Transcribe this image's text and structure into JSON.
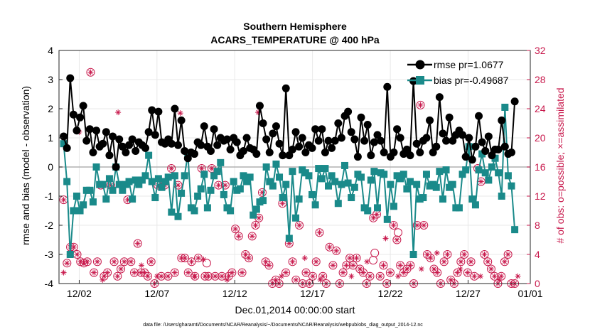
{
  "chart_data": {
    "type": "line",
    "title": "Southern Hemisphere",
    "subtitle": "ACARS_TEMPERATURE @ 400 hPa",
    "xlabel": "Dec.01,2014 00:00:00 start",
    "ylabel": "rmse and bias (model - observation)",
    "y2label": "# of obs: o=possible; ×=assimilated",
    "ylim": [
      -4,
      4
    ],
    "y2lim": [
      0,
      32
    ],
    "xlim": [
      0.7,
      31.0
    ],
    "xticks": [
      2,
      7,
      12,
      17,
      22,
      27,
      31
    ],
    "xticklabels": [
      "12/02",
      "12/07",
      "12/12",
      "12/17",
      "12/22",
      "12/27",
      "01/01"
    ],
    "yticks": [
      -4,
      -3,
      -2,
      -1,
      0,
      1,
      2,
      3,
      4
    ],
    "y2ticks": [
      0,
      4,
      8,
      12,
      16,
      20,
      24,
      28,
      32
    ],
    "legend_position": "top-right",
    "footnote": "data file: /Users/gharamti/Documents/NCAR/Reanalysis/~/Documents/NCAR/Reanalysis/webpub/obs_diag_output_2014-12.nc",
    "colors": {
      "rmse": "#000000",
      "bias": "#1a8a8a",
      "obs": "#c8194c",
      "zero": "#b0b0b0",
      "grid": "#e8e8e8"
    },
    "series": [
      {
        "name": "rmse pr=1.0677",
        "values": [
          1.05,
          0.65,
          3.05,
          1.8,
          1.25,
          1.7,
          2.1,
          0.9,
          1.3,
          0.5,
          1.25,
          0.7,
          0.8,
          1.2,
          0.4,
          1.05,
          0.0,
          0.95,
          0.7,
          0.5,
          0.75,
          0.95,
          0.55,
          0.85,
          0.75,
          0.65,
          1.2,
          1.95,
          1.1,
          1.9,
          0.85,
          0.8,
          0.95,
          0.8,
          2.0,
          0.75,
          1.6,
          0.55,
          0.3,
          0.5,
          0.45,
          0.85,
          0.75,
          1.4,
          0.7,
          0.55,
          1.3,
          0.75,
          1.0,
          0.9,
          0.95,
          0.6,
          1.0,
          0.85,
          0.4,
          0.55,
          1.0,
          0.65,
          0.6,
          0.45,
          2.1,
          1.5,
          0.95,
          0.5,
          1.15,
          1.4,
          0.8,
          0.4,
          2.7,
          0.4,
          0.6,
          1.2,
          0.7,
          1.0,
          0.5,
          0.75,
          0.65,
          1.3,
          0.9,
          1.3,
          0.5,
          0.9,
          0.65,
          0.9,
          1.5,
          1.0,
          1.75,
          1.9,
          1.2,
          0.95,
          0.35,
          1.7,
          0.9,
          1.45,
          0.4,
          0.85,
          1.1,
          0.9,
          0.5,
          2.75,
          0.35,
          0.5,
          1.3,
          1.0,
          0.45,
          0.6,
          0.4,
          2.95,
          0.8,
          0.5,
          0.9,
          1.0,
          1.6,
          0.5,
          0.7,
          2.4,
          1.15,
          0.9,
          1.7,
          0.9,
          1.1,
          1.25,
          1.1,
          0.35,
          1.0,
          0.25,
          0.7,
          1.75,
          0.85,
          0.55,
          1.05,
          0.4,
          0.6,
          0.6,
          1.6,
          0.7,
          0.45,
          0.5,
          2.25
        ]
      },
      {
        "name": "bias pr=-0.49687",
        "values": [
          0.8,
          -0.5,
          -3.0,
          -1.5,
          -1.0,
          -1.5,
          -1.3,
          -0.8,
          -0.8,
          -1.2,
          0.0,
          -0.6,
          -0.6,
          -1.1,
          -0.4,
          -0.8,
          0.0,
          -0.6,
          -0.8,
          -0.6,
          -0.5,
          -1.1,
          -0.45,
          -0.6,
          -0.45,
          -0.3,
          0.4,
          -0.5,
          -1.05,
          -0.4,
          -0.7,
          -0.5,
          -0.35,
          -1.55,
          -0.3,
          -1.7,
          -0.9,
          -0.3,
          0.45,
          -1.4,
          -1.5,
          -1.0,
          -0.75,
          -0.25,
          -1.4,
          -0.8,
          -0.3,
          -0.15,
          0.15,
          -0.95,
          -1.4,
          -1.5,
          -0.5,
          -0.8,
          -0.75,
          -0.3,
          -0.5,
          -0.35,
          -1.65,
          -1.45,
          -1.2,
          -1.15,
          0.0,
          -0.5,
          -0.65,
          0.1,
          -0.35,
          -1.05,
          -0.6,
          -2.45,
          -0.15,
          -1.75,
          -1.1,
          -0.1,
          -0.2,
          -0.3,
          -0.95,
          -1.3,
          -0.05,
          -0.4,
          -0.05,
          -0.65,
          -0.3,
          -0.5,
          -1.25,
          -0.6,
          0.05,
          -0.55,
          -1.05,
          -0.7,
          -0.25,
          -0.35,
          -1.4,
          -1.5,
          -0.45,
          -0.15,
          -1.4,
          -0.2,
          -0.25,
          -1.8,
          -0.6,
          -1.35,
          -0.3,
          -0.4,
          -0.25,
          -0.75,
          -0.5,
          -3.0,
          -0.6,
          -1.1,
          -1.05,
          -0.25,
          -0.65,
          -0.6,
          -0.7,
          -0.15,
          -1.1,
          -0.1,
          -0.7,
          -0.6,
          -1.4,
          -1.4,
          -0.25,
          -0.1,
          0.7,
          -1.1,
          -1.3,
          -0.1,
          0.45,
          -0.2,
          -0.45,
          0.0,
          0.3,
          -0.2,
          -1.0,
          2.05,
          -0.3,
          -0.65,
          -2.15
        ]
      }
    ],
    "obs_possible": [
      11.5,
      2.8,
      5,
      5,
      4,
      3,
      2.8,
      3,
      29,
      1.5,
      3,
      13.5,
      1,
      1.5,
      13.5,
      3,
      1,
      2,
      3,
      11.5,
      3,
      1.5,
      5.5,
      1.5,
      1.5,
      1,
      3,
      0,
      13.5,
      1,
      13.5,
      1,
      15.8,
      1.5,
      13.5,
      3.5,
      3.5,
      1.5,
      3,
      1,
      3.5,
      15.8,
      1,
      1,
      15.8,
      1,
      13.5,
      1,
      13.5,
      1,
      1.5,
      7.5,
      6.5,
      1.5,
      4,
      3.5,
      6.5,
      8,
      9,
      12.5,
      3,
      2.5,
      0,
      0.5,
      0,
      11,
      1.5,
      5.5,
      3,
      0.5,
      8,
      0,
      1.5,
      0,
      1,
      3,
      7,
      1,
      0,
      5,
      2.5,
      4.5,
      0,
      1.5,
      2.5,
      3.5,
      2.5,
      3.5,
      2,
      1.5,
      0,
      1,
      9,
      9.5,
      1,
      2.5,
      0,
      1.5,
      8,
      6,
      2.5,
      1.5,
      2,
      2.5,
      0,
      8,
      24.5,
      8,
      4,
      3.5,
      2,
      1.5,
      0,
      3,
      4,
      0.5,
      0,
      1.5,
      3,
      4,
      1.5,
      3,
      1,
      15.8,
      14,
      4,
      3,
      2,
      1,
      0,
      1,
      3,
      4,
      0,
      0
    ],
    "obs_possible_special": [
      [
        21.0,
        4.2
      ],
      [
        22.5,
        7.0
      ],
      [
        20.9,
        3.2
      ],
      [
        10.2,
        2.8
      ]
    ],
    "obs_assimilated": [
      [
        1.0,
        1.5
      ],
      [
        2.0,
        20.8
      ],
      [
        3.5,
        0.5
      ],
      [
        4.5,
        23.5
      ],
      [
        6.0,
        2.5
      ],
      [
        7.0,
        1.0
      ],
      [
        8.5,
        23.4
      ],
      [
        9.4,
        1.0
      ],
      [
        10.0,
        3.3
      ],
      [
        11.5,
        0.5
      ],
      [
        13.5,
        23.5
      ],
      [
        15.0,
        1.0
      ],
      [
        16.5,
        3.5
      ],
      [
        17.5,
        0.5
      ],
      [
        19.5,
        1.0
      ],
      [
        20.5,
        3.0
      ],
      [
        21.7,
        6.2
      ],
      [
        22.5,
        1.0
      ],
      [
        24.0,
        2.0
      ],
      [
        25.0,
        4.2
      ],
      [
        26.5,
        2.0
      ],
      [
        27.8,
        1.0
      ],
      [
        29.0,
        0.5
      ],
      [
        30.2,
        1.0
      ]
    ]
  },
  "legend": {
    "rmse_label": "rmse pr=1.0677",
    "bias_label": "bias pr=-0.49687"
  }
}
